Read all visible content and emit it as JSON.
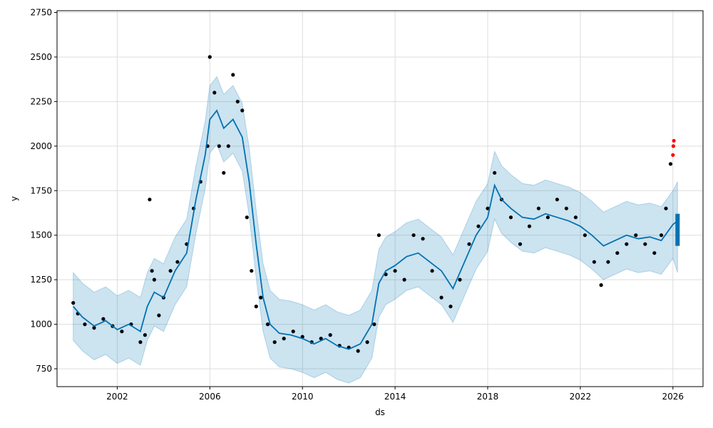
{
  "chart_data": {
    "type": "line",
    "xlabel": "ds",
    "ylabel": "y",
    "xlim": [
      1999.4,
      2027.3
    ],
    "ylim": [
      650,
      2760
    ],
    "grid": true,
    "x_ticks": [
      2002,
      2006,
      2010,
      2014,
      2018,
      2022,
      2026
    ],
    "x_tick_labels": [
      "2002",
      "2006",
      "2010",
      "2014",
      "2018",
      "2022",
      "2026"
    ],
    "y_ticks": [
      750,
      1000,
      1250,
      1500,
      1750,
      2000,
      2250,
      2500,
      2750
    ],
    "y_tick_labels": [
      "750",
      "1000",
      "1250",
      "1500",
      "1750",
      "2000",
      "2250",
      "2500",
      "2750"
    ],
    "colors": {
      "observed": "#000000",
      "forecast_line": "#0072B2",
      "uncertainty_band": "#0072B2",
      "recent_points": "#ff0000",
      "grid": "#dddddd"
    },
    "series": [
      {
        "role": "forecast-yhat",
        "x": [
          2000.1,
          2000.5,
          2001.0,
          2001.5,
          2002.0,
          2002.5,
          2003.0,
          2003.3,
          2003.6,
          2004.0,
          2004.5,
          2005.0,
          2005.4,
          2005.8,
          2006.0,
          2006.3,
          2006.6,
          2007.0,
          2007.4,
          2007.7,
          2008.0,
          2008.3,
          2008.6,
          2009.0,
          2009.5,
          2010.0,
          2010.5,
          2011.0,
          2011.5,
          2012.0,
          2012.5,
          2013.0,
          2013.3,
          2013.6,
          2014.0,
          2014.5,
          2015.0,
          2015.5,
          2016.0,
          2016.5,
          2017.0,
          2017.5,
          2018.0,
          2018.3,
          2018.6,
          2019.0,
          2019.5,
          2020.0,
          2020.5,
          2021.0,
          2021.5,
          2022.0,
          2022.5,
          2023.0,
          2023.5,
          2024.0,
          2024.5,
          2025.0,
          2025.5,
          2026.0,
          2026.2
        ],
        "y": [
          1100,
          1040,
          990,
          1020,
          970,
          1000,
          960,
          1100,
          1180,
          1150,
          1300,
          1400,
          1700,
          1950,
          2150,
          2200,
          2100,
          2150,
          2050,
          1800,
          1450,
          1150,
          1000,
          950,
          940,
          920,
          890,
          920,
          880,
          860,
          890,
          1000,
          1230,
          1300,
          1330,
          1380,
          1400,
          1350,
          1300,
          1200,
          1350,
          1500,
          1600,
          1780,
          1700,
          1650,
          1600,
          1590,
          1620,
          1600,
          1580,
          1550,
          1500,
          1440,
          1470,
          1500,
          1480,
          1490,
          1470,
          1560,
          1580
        ]
      },
      {
        "role": "uncertainty-interval",
        "x": [
          2000.1,
          2000.5,
          2001.0,
          2001.5,
          2002.0,
          2002.5,
          2003.0,
          2003.3,
          2003.6,
          2004.0,
          2004.5,
          2005.0,
          2005.4,
          2005.8,
          2006.0,
          2006.3,
          2006.6,
          2007.0,
          2007.4,
          2007.7,
          2008.0,
          2008.3,
          2008.6,
          2009.0,
          2009.5,
          2010.0,
          2010.5,
          2011.0,
          2011.5,
          2012.0,
          2012.5,
          2013.0,
          2013.3,
          2013.6,
          2014.0,
          2014.5,
          2015.0,
          2015.5,
          2016.0,
          2016.5,
          2017.0,
          2017.5,
          2018.0,
          2018.3,
          2018.6,
          2019.0,
          2019.5,
          2020.0,
          2020.5,
          2021.0,
          2021.5,
          2022.0,
          2022.5,
          2023.0,
          2023.5,
          2024.0,
          2024.5,
          2025.0,
          2025.5,
          2026.0,
          2026.2
        ],
        "upper": [
          1290,
          1230,
          1180,
          1210,
          1160,
          1190,
          1150,
          1290,
          1370,
          1340,
          1490,
          1590,
          1890,
          2140,
          2340,
          2390,
          2290,
          2340,
          2240,
          1990,
          1640,
          1340,
          1190,
          1140,
          1130,
          1110,
          1080,
          1110,
          1070,
          1050,
          1080,
          1190,
          1420,
          1490,
          1520,
          1570,
          1590,
          1540,
          1490,
          1390,
          1540,
          1690,
          1790,
          1970,
          1890,
          1840,
          1790,
          1780,
          1810,
          1790,
          1770,
          1740,
          1690,
          1630,
          1660,
          1690,
          1670,
          1680,
          1660,
          1750,
          1800
        ],
        "lower": [
          910,
          850,
          800,
          830,
          780,
          810,
          770,
          910,
          990,
          960,
          1110,
          1210,
          1510,
          1760,
          1960,
          2010,
          1910,
          1960,
          1860,
          1610,
          1260,
          960,
          810,
          760,
          750,
          730,
          700,
          730,
          690,
          670,
          700,
          810,
          1040,
          1110,
          1140,
          1190,
          1210,
          1160,
          1110,
          1010,
          1160,
          1310,
          1410,
          1590,
          1510,
          1460,
          1410,
          1400,
          1430,
          1410,
          1390,
          1360,
          1310,
          1250,
          1280,
          1310,
          1290,
          1300,
          1280,
          1370,
          1290
        ]
      },
      {
        "role": "observed-points",
        "x": [
          2000.1,
          2000.3,
          2000.6,
          2001.0,
          2001.4,
          2001.8,
          2002.2,
          2002.6,
          2003.0,
          2003.2,
          2003.4,
          2003.5,
          2003.6,
          2003.8,
          2004.0,
          2004.3,
          2004.6,
          2005.0,
          2005.3,
          2005.6,
          2005.9,
          2006.0,
          2006.2,
          2006.4,
          2006.6,
          2006.8,
          2007.0,
          2007.2,
          2007.4,
          2007.6,
          2007.8,
          2008.0,
          2008.2,
          2008.5,
          2008.8,
          2009.2,
          2009.6,
          2010.0,
          2010.4,
          2010.8,
          2011.2,
          2011.6,
          2012.0,
          2012.4,
          2012.8,
          2013.1,
          2013.3,
          2013.6,
          2014.0,
          2014.4,
          2014.8,
          2015.2,
          2015.6,
          2016.0,
          2016.4,
          2016.8,
          2017.2,
          2017.6,
          2018.0,
          2018.3,
          2018.6,
          2019.0,
          2019.4,
          2019.8,
          2020.2,
          2020.6,
          2021.0,
          2021.4,
          2021.8,
          2022.2,
          2022.6,
          2022.9,
          2023.2,
          2023.6,
          2024.0,
          2024.4,
          2024.8,
          2025.2,
          2025.5,
          2025.7,
          2025.9
        ],
        "y": [
          1120,
          1060,
          1000,
          980,
          1030,
          990,
          960,
          1000,
          900,
          940,
          1700,
          1300,
          1250,
          1050,
          1150,
          1300,
          1350,
          1450,
          1650,
          1800,
          2000,
          2500,
          2300,
          2000,
          1850,
          2000,
          2400,
          2250,
          2200,
          1600,
          1300,
          1100,
          1150,
          1000,
          900,
          920,
          960,
          930,
          900,
          920,
          940,
          880,
          870,
          850,
          900,
          1000,
          1500,
          1280,
          1300,
          1250,
          1500,
          1480,
          1300,
          1150,
          1100,
          1250,
          1450,
          1550,
          1650,
          1850,
          1700,
          1600,
          1450,
          1550,
          1650,
          1600,
          1700,
          1650,
          1600,
          1500,
          1350,
          1220,
          1350,
          1400,
          1450,
          1500,
          1450,
          1400,
          1500,
          1650,
          1900
        ]
      },
      {
        "role": "recent-points",
        "x": [
          2026.0,
          2026.02,
          2026.04
        ],
        "y": [
          1950,
          2000,
          2030
        ]
      }
    ]
  }
}
